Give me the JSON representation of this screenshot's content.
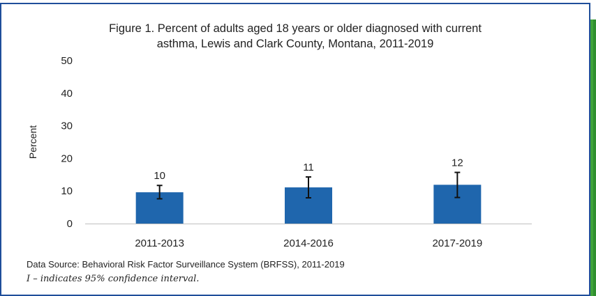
{
  "colors": {
    "bar": "#1f66ad",
    "axis": "#bfbfbf",
    "frame": "#1f4e9a",
    "rail": "#3fa33a"
  },
  "chart_data": {
    "type": "bar",
    "title_line1": "Figure 1. Percent of adults aged 18 years or older diagnosed with current",
    "title_line2": "asthma, Lewis and Clark County, Montana, 2011-2019",
    "ylabel": "Percent",
    "ylim": [
      0,
      50
    ],
    "yticks": [
      "0",
      "10",
      "20",
      "30",
      "40",
      "50"
    ],
    "categories": [
      "2011-2013",
      "2014-2016",
      "2017-2019"
    ],
    "values": [
      9.6,
      11.1,
      11.9
    ],
    "value_labels": [
      "10",
      "11",
      "12"
    ],
    "ci_low": [
      7.6,
      7.9,
      8.0
    ],
    "ci_high": [
      11.7,
      14.3,
      15.7
    ],
    "grid": false
  },
  "footnotes": {
    "source": "Data Source: Behavioral Risk Factor Surveillance System (BRFSS), 2011-2019",
    "ci_note": "I – indicates 95% confidence interval."
  }
}
